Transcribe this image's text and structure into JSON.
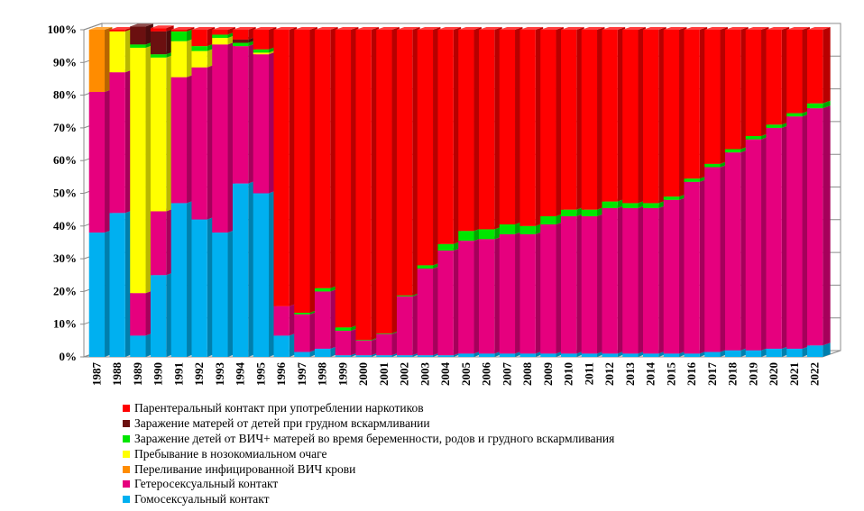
{
  "chart_data": {
    "type": "bar",
    "stacked": true,
    "percent": true,
    "three_d": true,
    "categories": [
      "1987",
      "1988",
      "1989",
      "1990",
      "1991",
      "1992",
      "1993",
      "1994",
      "1995",
      "1996",
      "1997",
      "1998",
      "1999",
      "2000",
      "2001",
      "2002",
      "2003",
      "2004",
      "2005",
      "2006",
      "2007",
      "2008",
      "2009",
      "2010",
      "2011",
      "2012",
      "2013",
      "2014",
      "2015",
      "2016",
      "2017",
      "2018",
      "2019",
      "2020",
      "2021",
      "2022"
    ],
    "y_ticks": [
      "0%",
      "10%",
      "20%",
      "30%",
      "40%",
      "50%",
      "60%",
      "70%",
      "80%",
      "90%",
      "100%"
    ],
    "ylim": [
      0,
      100
    ],
    "legend_position": "bottom",
    "series": [
      {
        "name": "Гомосексуальный контакт",
        "color": "#00B0F0",
        "values": [
          38,
          44,
          6.5,
          25,
          47,
          42,
          38,
          53,
          50,
          6.5,
          1.5,
          2.5,
          0.5,
          0.5,
          0.5,
          0.5,
          0.5,
          0.5,
          1,
          1,
          1,
          1,
          1,
          1,
          1,
          1,
          1,
          1,
          1,
          1,
          1.5,
          2,
          2,
          2.5,
          2.5,
          3.5
        ]
      },
      {
        "name": "Гетеросексуальный контакт",
        "color": "#E6007E",
        "values": [
          43,
          43,
          13,
          19.5,
          38.5,
          46.5,
          57.5,
          42,
          42.5,
          9,
          11.5,
          17.5,
          7.5,
          4.5,
          6.5,
          18,
          26.5,
          32,
          34.5,
          35,
          36.5,
          36.5,
          39.5,
          42,
          42,
          44.5,
          44.5,
          44.5,
          47,
          52.5,
          56.5,
          60.5,
          64.5,
          67.5,
          71,
          72.5
        ]
      },
      {
        "name": "Переливание  инфицированной ВИЧ крови",
        "color": "#FF8C00",
        "values": [
          19,
          0,
          0,
          0,
          0,
          0,
          0,
          0,
          0,
          0,
          0,
          0,
          0,
          0,
          0,
          0,
          0,
          0,
          0,
          0,
          0,
          0,
          0,
          0,
          0,
          0,
          0,
          0,
          0,
          0,
          0,
          0,
          0,
          0,
          0,
          0
        ]
      },
      {
        "name": "Пребывание в нозокомиальном очаге",
        "color": "#FFFF00",
        "values": [
          0,
          12.5,
          75,
          47,
          11,
          5,
          2,
          0,
          0.5,
          0,
          0,
          0,
          0,
          0,
          0,
          0,
          0,
          0,
          0,
          0,
          0,
          0,
          0,
          0,
          0,
          0,
          0,
          0,
          0,
          0,
          0,
          0,
          0,
          0,
          0,
          0
        ]
      },
      {
        "name": "Заражение детей от ВИЧ+ матерей во время беременности, родов и грудного вскармливания",
        "color": "#00E600",
        "values": [
          0,
          0,
          1,
          1,
          3,
          1.5,
          1,
          1,
          1,
          0,
          0.5,
          1,
          1,
          0.2,
          0.2,
          0.3,
          1,
          2,
          3,
          3,
          3,
          2.5,
          2.5,
          2,
          2,
          2,
          1.5,
          1.5,
          1,
          1,
          1,
          1,
          1,
          1,
          1,
          1.5
        ]
      },
      {
        "name": "Заражение матерей от детей при грудном вскармливании",
        "color": "#6B1010",
        "values": [
          0,
          0,
          5.5,
          7,
          0,
          0,
          0,
          1,
          0,
          0,
          0,
          0,
          0,
          0,
          0,
          0,
          0,
          0,
          0,
          0,
          0,
          0,
          0,
          0,
          0,
          0,
          0,
          0,
          0,
          0,
          0,
          0,
          0,
          0,
          0,
          0
        ]
      },
      {
        "name": "Парентеральный контакт при употреблении наркотиков",
        "color": "#FF0000",
        "values": [
          0,
          0.5,
          0,
          1,
          0.5,
          5,
          1.5,
          3,
          6,
          84.5,
          86.5,
          79,
          91,
          94.8,
          92.8,
          81.2,
          72,
          65.5,
          61.5,
          61,
          59.5,
          60,
          57,
          55,
          55,
          52.5,
          53,
          53,
          51,
          45.5,
          41,
          36.5,
          32.5,
          29,
          25.5,
          22.5
        ]
      }
    ]
  }
}
